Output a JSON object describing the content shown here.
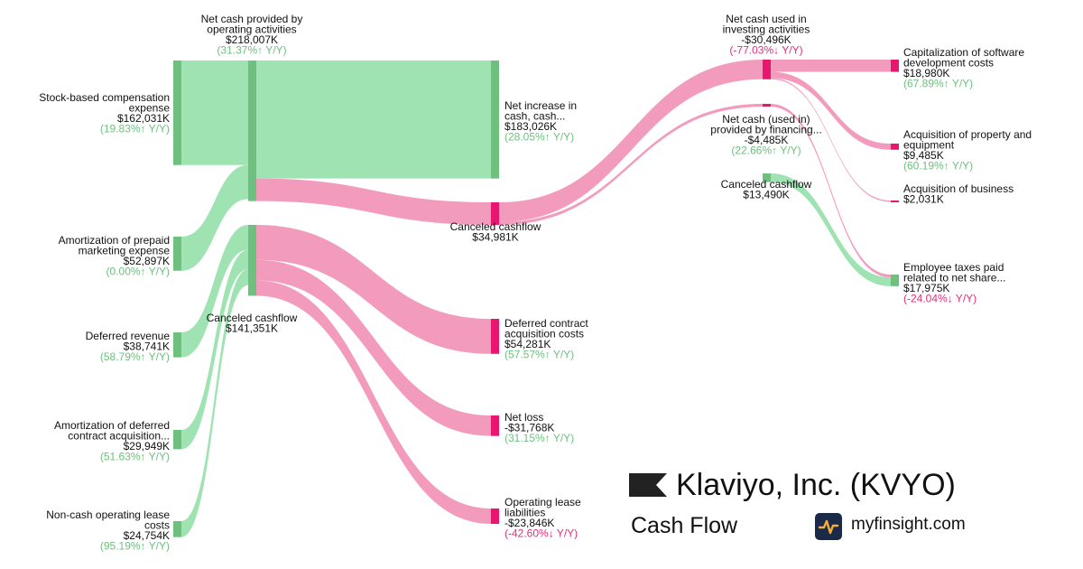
{
  "colors": {
    "positive_flow": "#9fe3b3",
    "positive_node": "#6fbf7f",
    "negative_flow": "#f29bbd",
    "negative_node": "#e8166e",
    "positive_text": "#6fbf7f",
    "negative_text": "#e0307a"
  },
  "brand": {
    "company": "Klaviyo, Inc. (KVYO)",
    "statement": "Cash Flow",
    "site": "myfinsight.com",
    "flag_icon": "flag-icon",
    "logo_icon": "pulse-logo-icon"
  },
  "chart_data": {
    "type": "sankey",
    "unit": "K",
    "nodes": [
      {
        "id": "sbc",
        "lines": [
          "Stock-based compensation",
          "expense"
        ],
        "value": "$162,031K",
        "change": "(19.83%↑ Y/Y)",
        "dir": "up"
      },
      {
        "id": "amort_prepaid",
        "lines": [
          "Amortization of prepaid",
          "marketing expense"
        ],
        "value": "$52,897K",
        "change": "(0.00%↑ Y/Y)",
        "dir": "up"
      },
      {
        "id": "deferred_rev",
        "lines": [
          "Deferred revenue"
        ],
        "value": "$38,741K",
        "change": "(58.79%↑ Y/Y)",
        "dir": "up"
      },
      {
        "id": "amort_deferred",
        "lines": [
          "Amortization of deferred",
          "contract acquisition..."
        ],
        "value": "$29,949K",
        "change": "(51.63%↑ Y/Y)",
        "dir": "up"
      },
      {
        "id": "noncash_lease",
        "lines": [
          "Non-cash operating lease",
          "costs"
        ],
        "value": "$24,754K",
        "change": "(95.19%↑ Y/Y)",
        "dir": "up"
      },
      {
        "id": "op",
        "lines": [
          "Net cash provided by",
          "operating activities"
        ],
        "value": "$218,007K",
        "change": "(31.37%↑ Y/Y)",
        "dir": "up"
      },
      {
        "id": "canceled_left",
        "lines": [
          "Canceled cashflow"
        ],
        "value": "$141,351K",
        "change": "",
        "dir": ""
      },
      {
        "id": "net_increase",
        "lines": [
          "Net increase in",
          "cash, cash..."
        ],
        "value": "$183,026K",
        "change": "(28.05%↑ Y/Y)",
        "dir": "up"
      },
      {
        "id": "canceled_mid",
        "lines": [
          "Canceled cashflow"
        ],
        "value": "$34,981K",
        "change": "",
        "dir": ""
      },
      {
        "id": "deferred_costs",
        "lines": [
          "Deferred contract",
          "acquisition costs"
        ],
        "value": "$54,281K",
        "change": "(57.57%↑ Y/Y)",
        "dir": "up"
      },
      {
        "id": "net_loss",
        "lines": [
          "Net loss"
        ],
        "value": "-$31,768K",
        "change": "(31.15%↑ Y/Y)",
        "dir": "up"
      },
      {
        "id": "lease_liab",
        "lines": [
          "Operating lease",
          "liabilities"
        ],
        "value": "-$23,846K",
        "change": "(-42.60%↓ Y/Y)",
        "dir": "down"
      },
      {
        "id": "investing",
        "lines": [
          "Net cash used in",
          "investing activities"
        ],
        "value": "-$30,496K",
        "change": "(-77.03%↓ Y/Y)",
        "dir": "down"
      },
      {
        "id": "financing",
        "lines": [
          "Net cash (used in)",
          "provided by financing..."
        ],
        "value": "-$4,485K",
        "change": "(22.66%↑ Y/Y)",
        "dir": "up"
      },
      {
        "id": "canceled_right",
        "lines": [
          "Canceled cashflow"
        ],
        "value": "$13,490K",
        "change": "",
        "dir": ""
      },
      {
        "id": "capex_software",
        "lines": [
          "Capitalization of software",
          "development costs"
        ],
        "value": "$18,980K",
        "change": "(67.89%↑ Y/Y)",
        "dir": "up"
      },
      {
        "id": "ppe",
        "lines": [
          "Acquisition of property and",
          "equipment"
        ],
        "value": "$9,485K",
        "change": "(60.19%↑ Y/Y)",
        "dir": "up"
      },
      {
        "id": "acq_business",
        "lines": [
          "Acquisition of business"
        ],
        "value": "$2,031K",
        "change": "",
        "dir": ""
      },
      {
        "id": "emp_taxes",
        "lines": [
          "Employee taxes paid",
          "related to net share..."
        ],
        "value": "$17,975K",
        "change": "(-24.04%↓ Y/Y)",
        "dir": "down"
      }
    ],
    "links": [
      {
        "source": "sbc",
        "target": "op",
        "value": 162031,
        "kind": "positive"
      },
      {
        "source": "amort_prepaid",
        "target": "op",
        "value": 52897,
        "kind": "positive"
      },
      {
        "source": "deferred_rev",
        "target": "canceled_left",
        "value": 38741,
        "kind": "positive"
      },
      {
        "source": "amort_deferred",
        "target": "canceled_left",
        "value": 29949,
        "kind": "positive"
      },
      {
        "source": "noncash_lease",
        "target": "canceled_left",
        "value": 24754,
        "kind": "positive"
      },
      {
        "source": "op",
        "target": "net_increase",
        "value": 183026,
        "kind": "positive"
      },
      {
        "source": "op",
        "target": "canceled_mid",
        "value": 34981,
        "kind": "negative"
      },
      {
        "source": "canceled_left",
        "target": "deferred_costs",
        "value": 54281,
        "kind": "negative"
      },
      {
        "source": "canceled_left",
        "target": "net_loss",
        "value": 31768,
        "kind": "negative"
      },
      {
        "source": "canceled_left",
        "target": "lease_liab",
        "value": 23846,
        "kind": "negative"
      },
      {
        "source": "canceled_mid",
        "target": "investing",
        "value": 30496,
        "kind": "negative"
      },
      {
        "source": "canceled_mid",
        "target": "financing",
        "value": 4485,
        "kind": "negative"
      },
      {
        "source": "investing",
        "target": "capex_software",
        "value": 18980,
        "kind": "negative"
      },
      {
        "source": "investing",
        "target": "ppe",
        "value": 9485,
        "kind": "negative"
      },
      {
        "source": "investing",
        "target": "acq_business",
        "value": 2031,
        "kind": "negative"
      },
      {
        "source": "financing",
        "target": "emp_taxes",
        "value": 4485,
        "kind": "negative"
      },
      {
        "source": "canceled_right",
        "target": "emp_taxes",
        "value": 13490,
        "kind": "positive"
      }
    ]
  }
}
